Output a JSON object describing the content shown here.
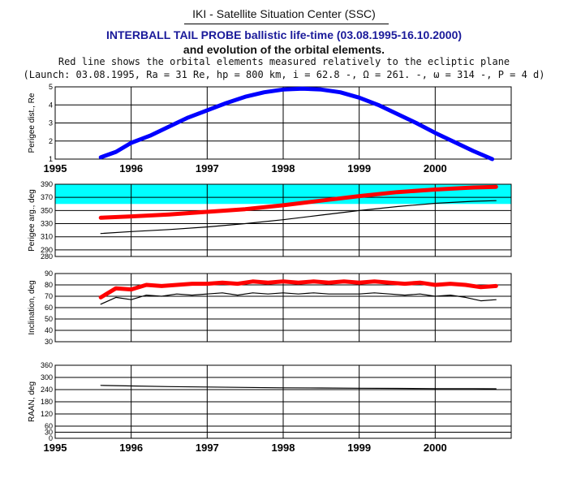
{
  "header": {
    "title": "IKI - Satellite Situation Center (SSC)",
    "subtitle": "INTERBALL TAIL PROBE ballistic life-time (03.08.1995-16.10.2000)",
    "line3": "and evolution of the orbital elements.",
    "line4": "Red line shows the orbital elements measured relatively to the ecliptic plane",
    "line5": "(Launch: 03.08.1995, Ra = 31 Re, hp = 800 km, i = 62.8 -, Ω = 261. -, ω = 314 -, P = 4 d)"
  },
  "colors": {
    "blue": "#0000ff",
    "red": "#ff0000",
    "cyan_band": "#00ffff",
    "black": "#000000",
    "grid": "#000000",
    "title_blue": "#1a1a9a"
  },
  "chart_data": [
    {
      "type": "line",
      "ylabel": "Perigee dist., Re",
      "xlim": [
        1995,
        2001
      ],
      "ylim": [
        1,
        5
      ],
      "yticks": [
        1,
        2,
        3,
        4,
        5
      ],
      "xticks": [
        1995,
        1996,
        1997,
        1998,
        1999,
        2000
      ],
      "grid": true,
      "series": [
        {
          "color": "blue",
          "x": [
            1995.6,
            1995.8,
            1996.0,
            1996.25,
            1996.5,
            1996.75,
            1997.0,
            1997.25,
            1997.5,
            1997.75,
            1998.0,
            1998.25,
            1998.5,
            1998.75,
            1999.0,
            1999.25,
            1999.5,
            1999.75,
            2000.0,
            2000.25,
            2000.5,
            2000.75
          ],
          "y": [
            1.1,
            1.4,
            1.9,
            2.3,
            2.8,
            3.3,
            3.7,
            4.1,
            4.45,
            4.7,
            4.85,
            4.9,
            4.85,
            4.7,
            4.4,
            4.0,
            3.5,
            3.0,
            2.45,
            1.95,
            1.45,
            1.0
          ]
        }
      ]
    },
    {
      "type": "line",
      "ylabel": "Perigee arg., deg",
      "xlim": [
        1995,
        2001
      ],
      "ylim": [
        280,
        390
      ],
      "yticks": [
        280,
        290,
        310,
        330,
        350,
        370,
        390
      ],
      "ytick_labels": [
        "280",
        "290",
        "310",
        "330",
        "350",
        "370",
        "390"
      ],
      "cyan_band": [
        360,
        390
      ],
      "grid": true,
      "series": [
        {
          "color": "red",
          "x": [
            1995.6,
            1996.0,
            1996.5,
            1997.0,
            1997.5,
            1998.0,
            1998.5,
            1999.0,
            1999.5,
            2000.0,
            2000.5,
            2000.8
          ],
          "y": [
            339,
            341,
            344,
            348,
            352,
            358,
            365,
            372,
            378,
            382,
            385,
            386
          ]
        },
        {
          "color": "black",
          "x": [
            1995.6,
            1996.0,
            1996.5,
            1997.0,
            1997.5,
            1998.0,
            1998.5,
            1999.0,
            1999.5,
            2000.0,
            2000.5,
            2000.8
          ],
          "y": [
            315,
            318,
            321,
            325,
            330,
            336,
            343,
            350,
            356,
            361,
            364,
            365
          ]
        }
      ]
    },
    {
      "type": "line",
      "ylabel": "Inclination, deg",
      "xlim": [
        1995,
        2001
      ],
      "ylim": [
        30,
        90
      ],
      "yticks": [
        30,
        40,
        50,
        60,
        70,
        80,
        90
      ],
      "grid": true,
      "series": [
        {
          "color": "red",
          "x": [
            1995.6,
            1995.8,
            1996.0,
            1996.2,
            1996.4,
            1996.6,
            1996.8,
            1997.0,
            1997.2,
            1997.4,
            1997.6,
            1997.8,
            1998.0,
            1998.2,
            1998.4,
            1998.6,
            1998.8,
            1999.0,
            1999.2,
            1999.4,
            1999.6,
            1999.8,
            2000.0,
            2000.2,
            2000.4,
            2000.6,
            2000.8
          ],
          "y": [
            69,
            77,
            76,
            80,
            79,
            80,
            81,
            81,
            82,
            81,
            83,
            82,
            83,
            82,
            83,
            82,
            83,
            82,
            83,
            82,
            81,
            82,
            80,
            81,
            80,
            78,
            79
          ]
        },
        {
          "color": "black",
          "x": [
            1995.6,
            1995.8,
            1996.0,
            1996.2,
            1996.4,
            1996.6,
            1996.8,
            1997.0,
            1997.2,
            1997.4,
            1997.6,
            1997.8,
            1998.0,
            1998.2,
            1998.4,
            1998.6,
            1998.8,
            1999.0,
            1999.2,
            1999.4,
            1999.6,
            1999.8,
            2000.0,
            2000.2,
            2000.4,
            2000.6,
            2000.8
          ],
          "y": [
            63,
            69,
            67,
            71,
            70,
            72,
            71,
            72,
            73,
            71,
            73,
            72,
            73,
            72,
            73,
            72,
            72,
            72,
            73,
            72,
            71,
            72,
            70,
            71,
            69,
            66,
            67
          ]
        }
      ]
    },
    {
      "type": "line",
      "ylabel": "RAAN, deg",
      "xlim": [
        1995,
        2001
      ],
      "ylim": [
        0,
        360
      ],
      "yticks": [
        0,
        30,
        60,
        120,
        180,
        240,
        300,
        360
      ],
      "xticks": [
        1995,
        1996,
        1997,
        1998,
        1999,
        2000
      ],
      "grid": true,
      "series": [
        {
          "color": "black",
          "x": [
            1995.6,
            1996.0,
            1996.5,
            1997.0,
            1997.5,
            1998.0,
            1998.5,
            1999.0,
            1999.5,
            2000.0,
            2000.5,
            2000.8
          ],
          "y": [
            261,
            258,
            255,
            253,
            251,
            249,
            248,
            247,
            246,
            245,
            245,
            244
          ]
        }
      ]
    }
  ]
}
